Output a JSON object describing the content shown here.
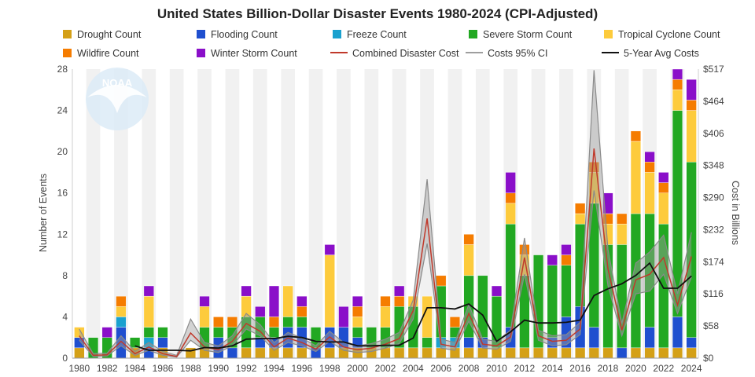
{
  "chart_data": {
    "type": "bar",
    "title": "United States Billion-Dollar Disaster Events 1980-2024 (CPI-Adjusted)",
    "ylabel": "Number of Events",
    "y2label": "Cost in Billions",
    "ylim": [
      0,
      28
    ],
    "y2lim": [
      0,
      517
    ],
    "yticks": [
      "0",
      "4",
      "8",
      "12",
      "16",
      "20",
      "24",
      "28"
    ],
    "y2ticks": [
      "$0",
      "$58",
      "$116",
      "$174",
      "$232",
      "$290",
      "$348",
      "$406",
      "$464",
      "$517"
    ],
    "xticks": [
      "1980",
      "1982",
      "1984",
      "1986",
      "1988",
      "1990",
      "1992",
      "1994",
      "1996",
      "1998",
      "2000",
      "2002",
      "2004",
      "2006",
      "2008",
      "2010",
      "2012",
      "2014",
      "2016",
      "2018",
      "2020",
      "2022",
      "2024"
    ],
    "categories": [
      "1980",
      "1981",
      "1982",
      "1983",
      "1984",
      "1985",
      "1986",
      "1987",
      "1988",
      "1989",
      "1990",
      "1991",
      "1992",
      "1993",
      "1994",
      "1995",
      "1996",
      "1997",
      "1998",
      "1999",
      "2000",
      "2001",
      "2002",
      "2003",
      "2004",
      "2005",
      "2006",
      "2007",
      "2008",
      "2009",
      "2010",
      "2011",
      "2012",
      "2013",
      "2014",
      "2015",
      "2016",
      "2017",
      "2018",
      "2019",
      "2020",
      "2021",
      "2022",
      "2023",
      "2024"
    ],
    "stacked": true,
    "grid": "alternating vertical bands",
    "legend_position": "top",
    "series": [
      {
        "name": "Drought Count",
        "color": "#d4a017",
        "values": [
          1,
          0,
          0,
          0,
          1,
          0,
          1,
          0,
          1,
          1,
          0,
          0,
          1,
          1,
          1,
          1,
          1,
          0,
          1,
          1,
          1,
          1,
          1,
          1,
          1,
          1,
          1,
          1,
          1,
          1,
          1,
          1,
          1,
          1,
          1,
          1,
          1,
          1,
          1,
          0,
          1,
          1,
          1,
          1,
          1
        ]
      },
      {
        "name": "Flooding Count",
        "color": "#1f4fcf",
        "values": [
          1,
          0,
          0,
          3,
          0,
          1,
          1,
          0,
          0,
          0,
          2,
          1,
          0,
          1,
          1,
          2,
          2,
          1,
          2,
          2,
          1,
          0,
          0,
          0,
          0,
          0,
          0,
          0,
          1,
          1,
          0,
          2,
          0,
          0,
          1,
          3,
          4,
          2,
          0,
          1,
          0,
          2,
          0,
          3,
          1
        ]
      },
      {
        "name": "Freeze Count",
        "color": "#1aa1cf",
        "values": [
          0,
          0,
          0,
          1,
          0,
          1,
          0,
          0,
          0,
          0,
          0,
          0,
          0,
          0,
          0,
          0,
          0,
          0,
          0,
          0,
          0,
          0,
          0,
          0,
          0,
          0,
          1,
          1,
          0,
          0,
          0,
          0,
          0,
          0,
          0,
          0,
          0,
          0,
          0,
          0,
          0,
          0,
          0,
          0,
          0
        ]
      },
      {
        "name": "Severe Storm Count",
        "color": "#22a822",
        "values": [
          0,
          2,
          2,
          0,
          1,
          1,
          1,
          0,
          0,
          2,
          1,
          2,
          3,
          2,
          1,
          1,
          1,
          2,
          0,
          0,
          1,
          2,
          2,
          4,
          4,
          1,
          5,
          1,
          6,
          6,
          5,
          10,
          7,
          9,
          7,
          5,
          8,
          12,
          10,
          10,
          13,
          11,
          12,
          20,
          17
        ]
      },
      {
        "name": "Tropical Cyclone Count",
        "color": "#fdcb3c",
        "values": [
          1,
          0,
          0,
          1,
          0,
          3,
          0,
          0,
          0,
          2,
          0,
          0,
          2,
          0,
          0,
          3,
          0,
          0,
          7,
          0,
          1,
          0,
          2,
          0,
          1,
          4,
          0,
          0,
          3,
          0,
          0,
          2,
          2,
          0,
          0,
          0,
          1,
          3,
          2,
          2,
          7,
          4,
          3,
          2,
          5
        ]
      },
      {
        "name": "Wildfire Count",
        "color": "#f57c00",
        "values": [
          0,
          0,
          0,
          1,
          0,
          0,
          0,
          0,
          0,
          0,
          1,
          1,
          0,
          0,
          1,
          0,
          1,
          0,
          0,
          0,
          1,
          0,
          1,
          1,
          0,
          0,
          1,
          1,
          1,
          0,
          0,
          1,
          1,
          0,
          0,
          1,
          1,
          1,
          1,
          1,
          1,
          1,
          1,
          1,
          1
        ]
      },
      {
        "name": "Winter Storm Count",
        "color": "#8a0fc9",
        "values": [
          0,
          0,
          1,
          0,
          0,
          1,
          0,
          0,
          0,
          1,
          0,
          0,
          1,
          1,
          3,
          0,
          1,
          0,
          1,
          2,
          1,
          0,
          0,
          1,
          0,
          0,
          0,
          0,
          0,
          0,
          1,
          2,
          0,
          0,
          1,
          1,
          0,
          0,
          2,
          0,
          0,
          1,
          1,
          1,
          2
        ]
      }
    ],
    "lines": [
      {
        "name": "Combined Disaster Cost",
        "color": "#c0392b",
        "values": [
          40,
          5,
          6,
          30,
          8,
          20,
          8,
          3,
          45,
          20,
          15,
          30,
          62,
          48,
          20,
          36,
          28,
          16,
          38,
          20,
          15,
          18,
          25,
          35,
          85,
          250,
          25,
          20,
          80,
          25,
          22,
          38,
          180,
          40,
          30,
          32,
          52,
          375,
          160,
          50,
          140,
          150,
          180,
          95,
          182
        ]
      },
      {
        "name": "5-Year Avg Costs",
        "color": "#111111",
        "values": [
          null,
          null,
          null,
          null,
          22,
          14,
          14,
          14,
          13,
          19,
          18,
          22,
          34,
          35,
          35,
          39,
          37,
          30,
          29,
          29,
          22,
          22,
          23,
          23,
          36,
          90,
          90,
          88,
          97,
          77,
          30,
          47,
          68,
          63,
          63,
          64,
          68,
          112,
          124,
          133,
          148,
          170,
          125,
          125,
          147
        ]
      }
    ],
    "band": {
      "name": "Costs 95% CI",
      "color": "#9e9e9e",
      "lower": [
        32,
        3,
        4,
        22,
        5,
        14,
        5,
        2,
        32,
        14,
        10,
        22,
        52,
        40,
        14,
        28,
        22,
        12,
        30,
        14,
        10,
        12,
        18,
        26,
        70,
        205,
        18,
        14,
        66,
        18,
        16,
        30,
        150,
        32,
        22,
        24,
        42,
        300,
        130,
        40,
        115,
        120,
        150,
        80,
        145
      ],
      "upper": [
        52,
        8,
        9,
        40,
        12,
        28,
        12,
        5,
        70,
        28,
        22,
        40,
        80,
        60,
        28,
        46,
        36,
        22,
        48,
        28,
        22,
        26,
        34,
        46,
        104,
        320,
        34,
        28,
        96,
        34,
        30,
        50,
        215,
        50,
        40,
        42,
        64,
        515,
        195,
        62,
        170,
        190,
        220,
        115,
        225
      ]
    }
  },
  "legend": [
    {
      "label": "Drought Count",
      "kind": "box",
      "color": "#d4a017"
    },
    {
      "label": "Flooding Count",
      "kind": "box",
      "color": "#1f4fcf"
    },
    {
      "label": "Freeze Count",
      "kind": "box",
      "color": "#1aa1cf"
    },
    {
      "label": "Severe Storm Count",
      "kind": "box",
      "color": "#22a822"
    },
    {
      "label": "Tropical Cyclone Count",
      "kind": "box",
      "color": "#fdcb3c"
    },
    {
      "label": "Wildfire Count",
      "kind": "box",
      "color": "#f57c00"
    },
    {
      "label": "Winter Storm Count",
      "kind": "box",
      "color": "#8a0fc9"
    },
    {
      "label": "Combined Disaster Cost",
      "kind": "line",
      "color": "#c0392b"
    },
    {
      "label": "Costs 95% CI",
      "kind": "line",
      "color": "#9e9e9e"
    },
    {
      "label": "5-Year Avg Costs",
      "kind": "line",
      "color": "#111111"
    }
  ],
  "watermark": "NOAA"
}
